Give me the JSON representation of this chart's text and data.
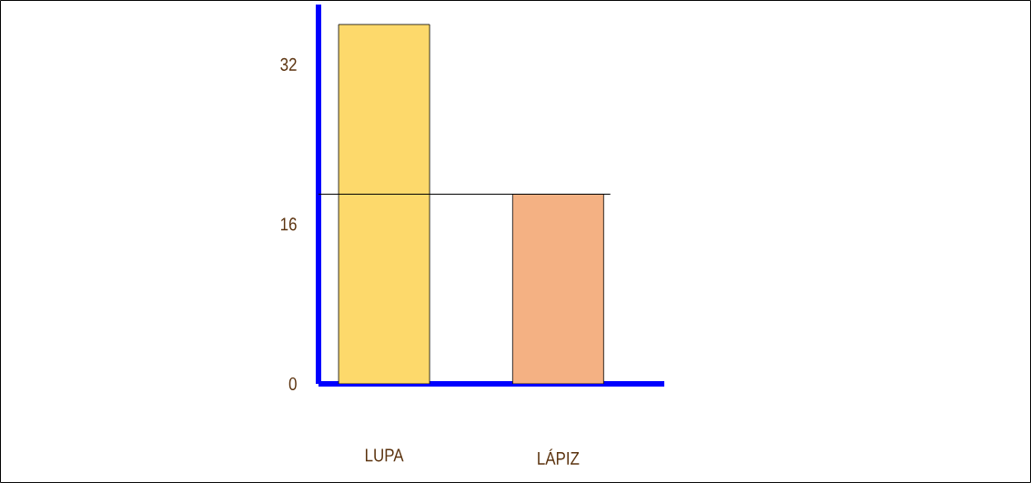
{
  "chart_data": {
    "type": "bar",
    "categories": [
      "LUPA",
      "LÁPIZ"
    ],
    "values": [
      36,
      19
    ],
    "colors": [
      "#fdd96b",
      "#f4b183"
    ],
    "ylim": [
      0,
      38
    ],
    "yticks": [
      0,
      16,
      32
    ],
    "grid": false,
    "ref_lines": [
      {
        "axis": "y",
        "value": 19,
        "color": "#000000"
      }
    ]
  }
}
